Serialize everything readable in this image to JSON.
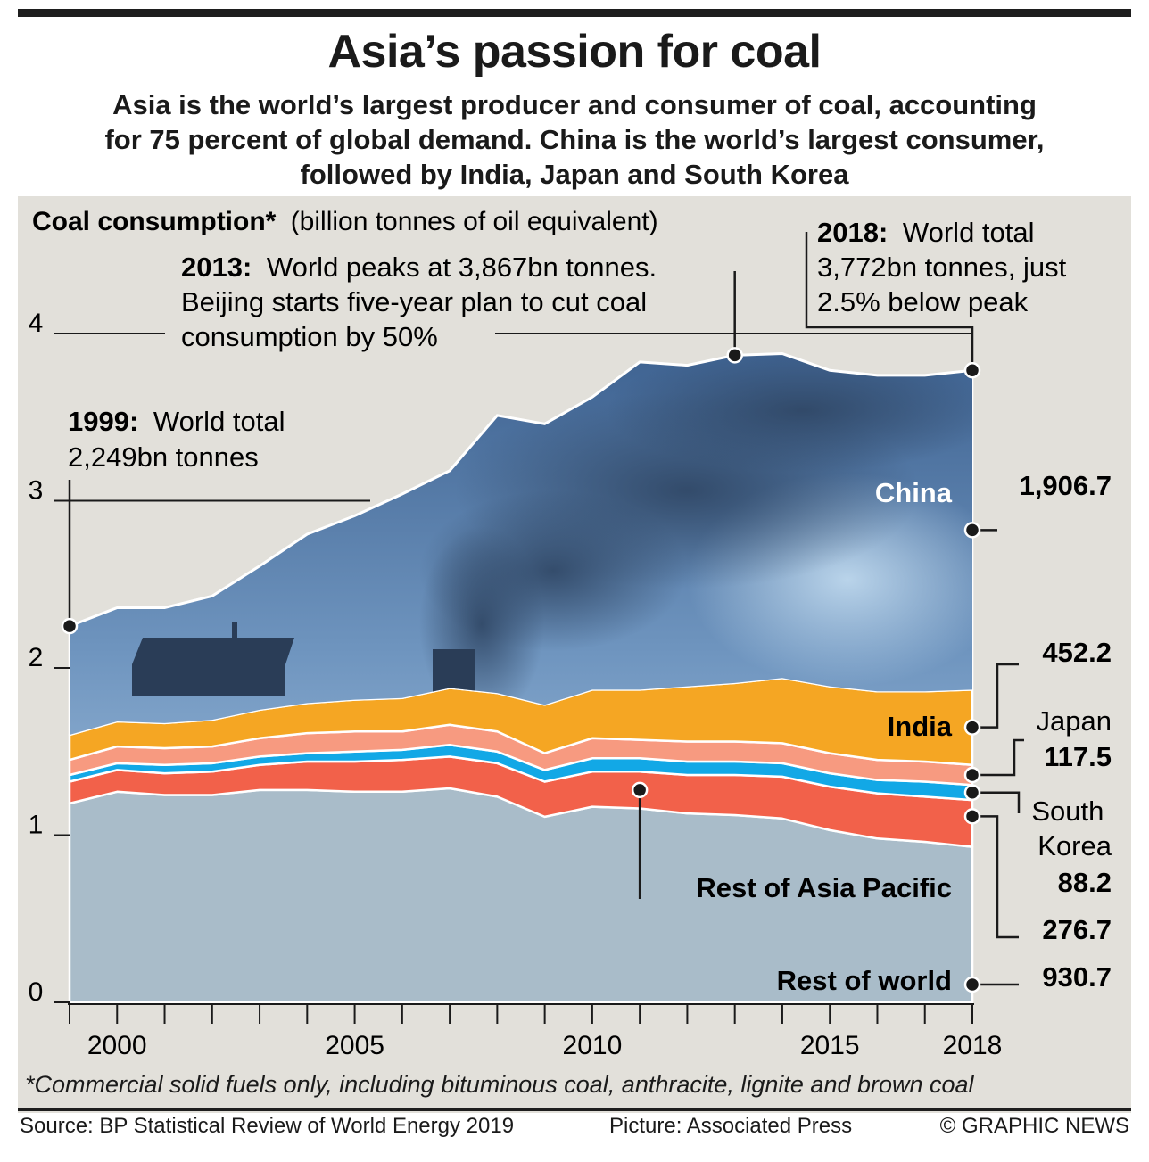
{
  "header": {
    "title": "Asia’s passion for coal",
    "subtitle_lines": [
      "Asia is the world’s largest producer and consumer of coal, accounting",
      "for 75 percent of global demand. China is the world’s largest consumer,",
      "followed by India, Japan and South Korea"
    ]
  },
  "footnote": "*Commercial solid fuels only, including bituminous coal, anthracite, lignite and brown coal",
  "footer": {
    "source": "Source: BP Statistical Review of World Energy 2019",
    "picture": "Picture: Associated Press",
    "credit": "© GRAPHIC NEWS"
  },
  "chart_data": {
    "type": "area",
    "stacked": true,
    "title": "Coal consumption*",
    "unit_label": "(billion tonnes of oil equivalent)",
    "x": [
      1999,
      2000,
      2001,
      2002,
      2003,
      2004,
      2005,
      2006,
      2007,
      2008,
      2009,
      2010,
      2011,
      2012,
      2013,
      2014,
      2015,
      2016,
      2017,
      2018
    ],
    "x_ticks": [
      2000,
      2005,
      2010,
      2015,
      2018
    ],
    "xlim": [
      1999,
      2018
    ],
    "y_ticks": [
      0,
      1,
      2,
      3,
      4
    ],
    "ylim": [
      0,
      4.3
    ],
    "series": [
      {
        "name": "Rest of world",
        "color": "#a9bcc9",
        "values": [
          1.19,
          1.26,
          1.24,
          1.24,
          1.27,
          1.27,
          1.26,
          1.26,
          1.28,
          1.23,
          1.11,
          1.17,
          1.16,
          1.13,
          1.12,
          1.1,
          1.03,
          0.98,
          0.96,
          0.93
        ]
      },
      {
        "name": "Rest of Asia Pacific",
        "color": "#f2614a",
        "values": [
          0.13,
          0.13,
          0.13,
          0.14,
          0.15,
          0.17,
          0.18,
          0.19,
          0.19,
          0.2,
          0.21,
          0.21,
          0.22,
          0.23,
          0.24,
          0.25,
          0.26,
          0.27,
          0.27,
          0.28
        ]
      },
      {
        "name": "South Korea",
        "color": "#12a8e6",
        "values": [
          0.04,
          0.04,
          0.05,
          0.05,
          0.05,
          0.05,
          0.06,
          0.06,
          0.07,
          0.07,
          0.07,
          0.08,
          0.08,
          0.08,
          0.08,
          0.08,
          0.08,
          0.08,
          0.09,
          0.09
        ]
      },
      {
        "name": "Japan",
        "color": "#f79a80",
        "values": [
          0.09,
          0.1,
          0.1,
          0.1,
          0.11,
          0.12,
          0.12,
          0.11,
          0.12,
          0.12,
          0.1,
          0.12,
          0.11,
          0.12,
          0.12,
          0.12,
          0.12,
          0.12,
          0.12,
          0.12
        ]
      },
      {
        "name": "India",
        "color": "#f5a623",
        "values": [
          0.15,
          0.15,
          0.15,
          0.16,
          0.17,
          0.18,
          0.19,
          0.2,
          0.22,
          0.23,
          0.29,
          0.29,
          0.3,
          0.33,
          0.35,
          0.39,
          0.4,
          0.41,
          0.42,
          0.45
        ]
      },
      {
        "name": "China",
        "color": "#4a72a4",
        "values": [
          0.65,
          0.68,
          0.69,
          0.74,
          0.86,
          1.01,
          1.1,
          1.22,
          1.3,
          1.66,
          1.68,
          1.75,
          1.96,
          1.92,
          1.96,
          1.94,
          1.89,
          1.89,
          1.89,
          1.91
        ]
      }
    ],
    "annotations": {
      "y1999": {
        "bold": "1999:",
        "lines": [
          "World total",
          "2,249bn tonnes"
        ]
      },
      "y2013": {
        "bold": "2013:",
        "lines": [
          "World peaks at  3,867bn tonnes.",
          "Beijing starts five-year plan to cut coal",
          "consumption by 50%"
        ]
      },
      "y2018": {
        "bold": "2018:",
        "lines": [
          "World total",
          "3,772bn tonnes, just",
          "2.5% below peak"
        ]
      }
    },
    "series_labels": {
      "china": "China",
      "india": "India",
      "rest_asia": "Rest of Asia Pacific",
      "rest_world": "Rest of world",
      "japan": "Japan",
      "south_korea_lines": [
        "South",
        "Korea"
      ]
    },
    "end_values": {
      "china": "1,906.7",
      "india": "452.2",
      "japan": "117.5",
      "south_korea": "88.2",
      "rest_asia": "276.7",
      "rest_world": "930.7"
    }
  }
}
